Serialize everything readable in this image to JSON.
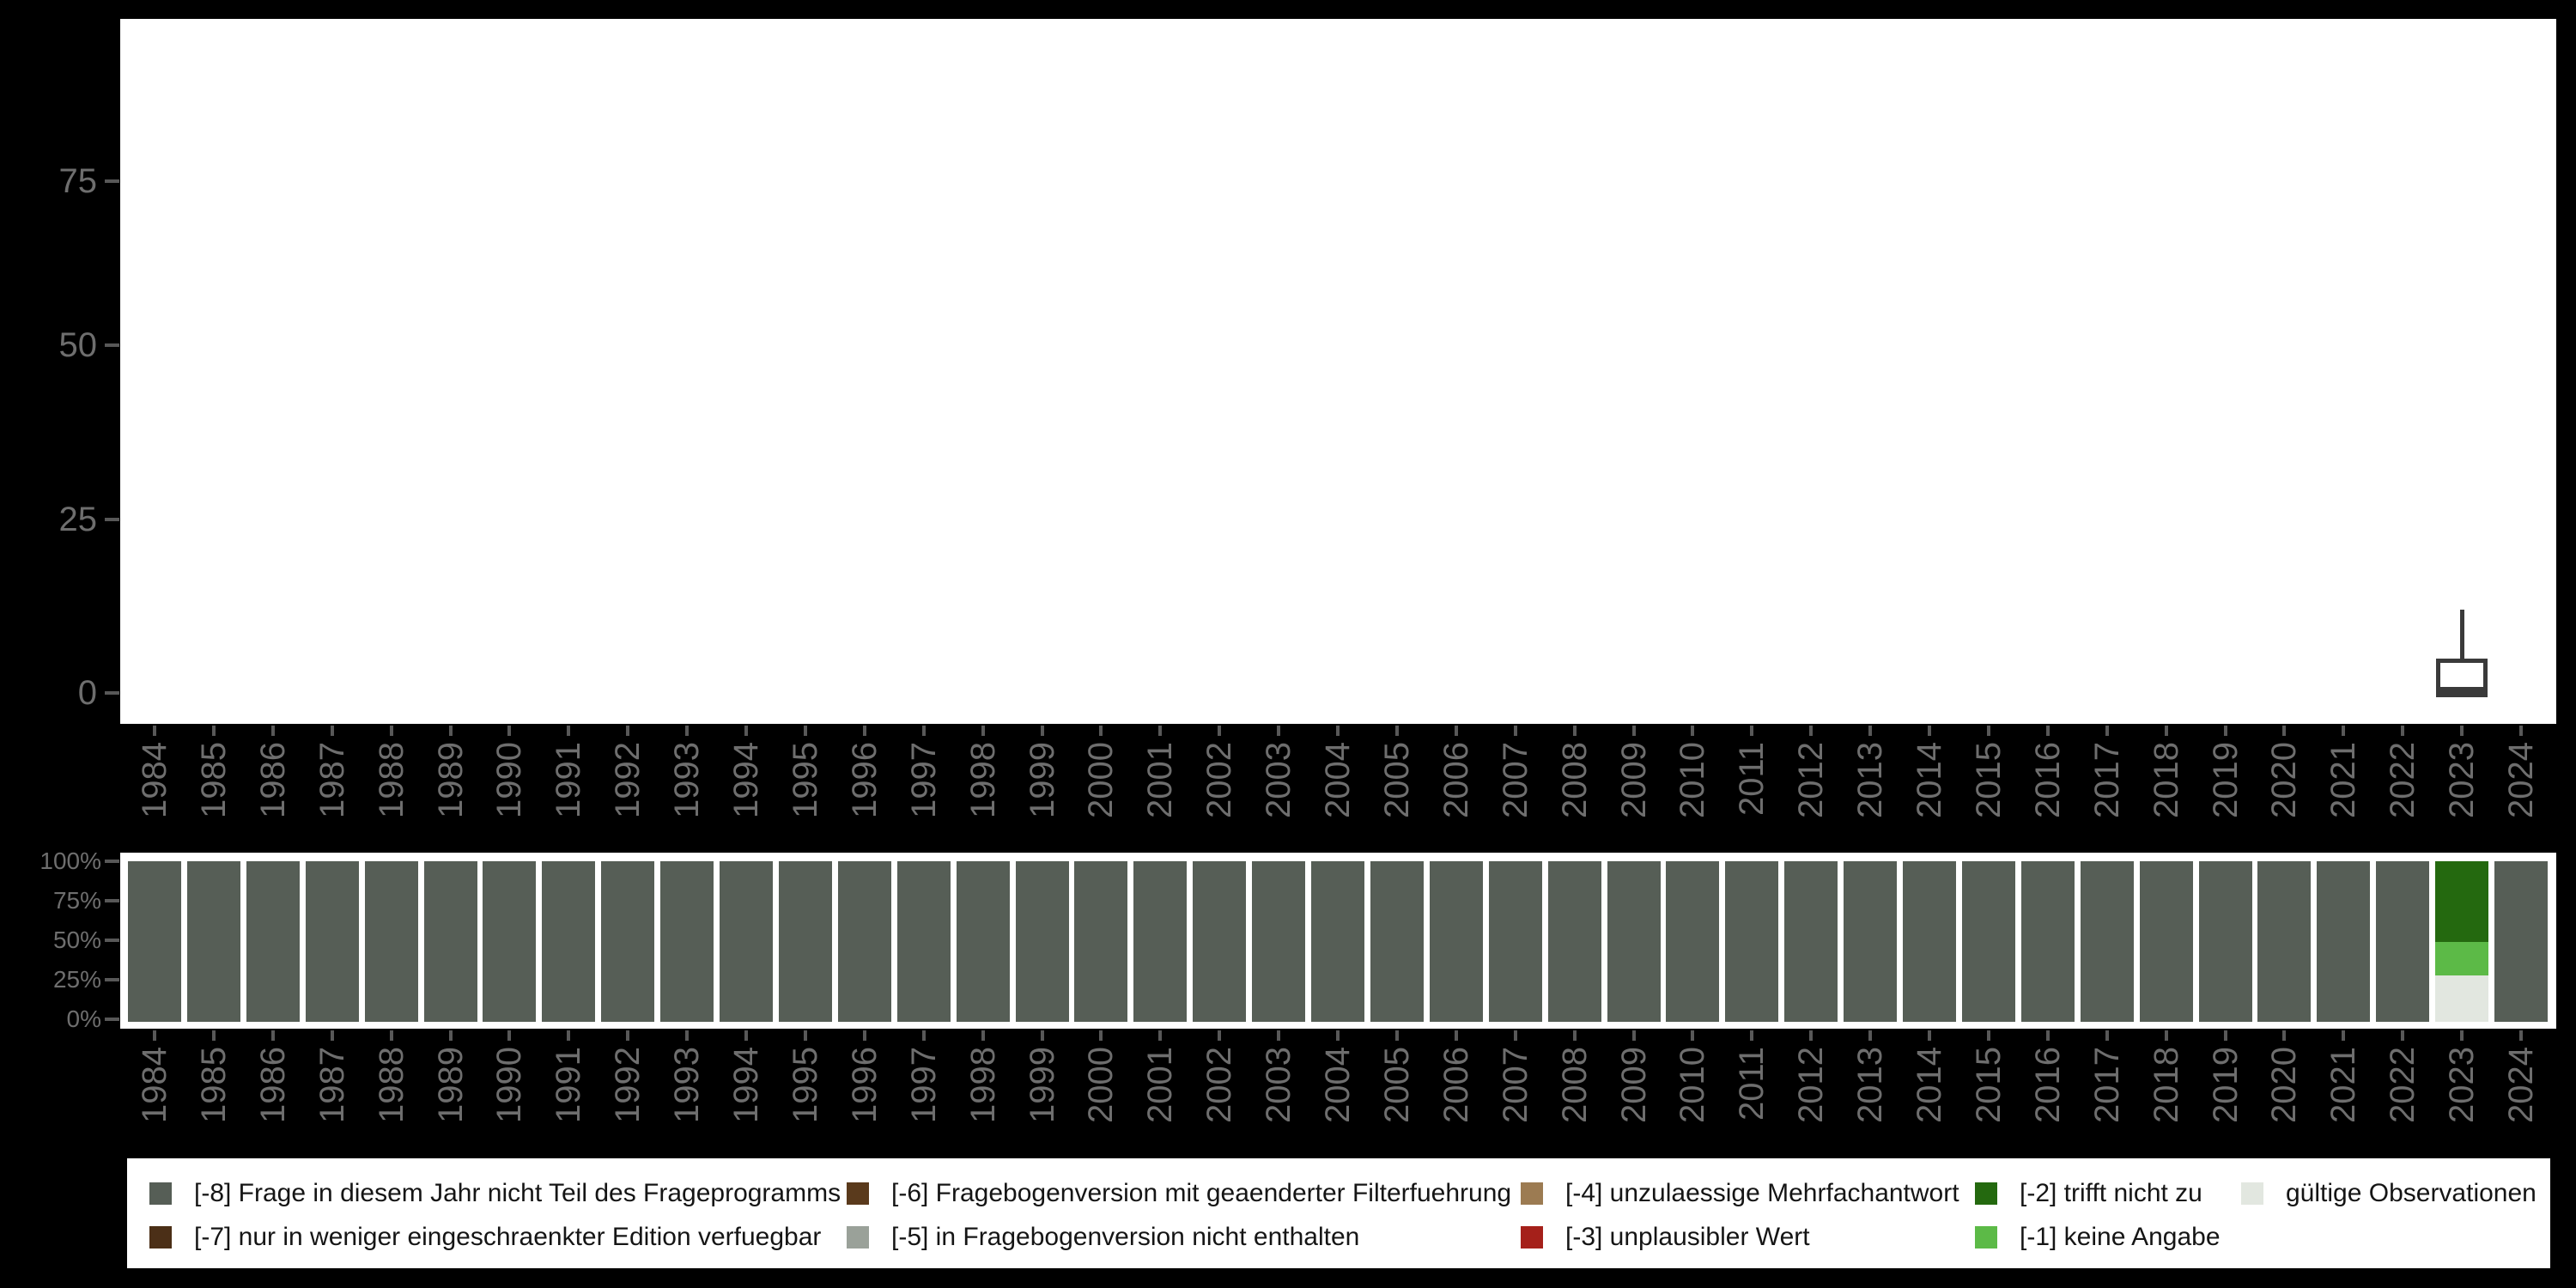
{
  "figure": {
    "background_color": "#000000",
    "plot_background_color": "#ffffff",
    "axis_text_color": "#6e6e6e",
    "tick_color": "#585858",
    "box_outline_color": "#3a3a3a"
  },
  "top_chart": {
    "y_tick_labels": [
      "75",
      "50",
      "25",
      "0"
    ]
  },
  "bottom_chart": {
    "y_tick_labels": [
      "100%",
      "75%",
      "50%",
      "25%",
      "0%"
    ]
  },
  "legend": {
    "items": [
      {
        "code": "-8",
        "label": "[-8] Frage in diesem Jahr nicht Teil des Frageprogramms",
        "color": "#565e56",
        "col": 0,
        "row": 0
      },
      {
        "code": "-7",
        "label": "[-7] nur in weniger eingeschraenkter Edition verfuegbar",
        "color": "#4b2f17",
        "col": 0,
        "row": 1
      },
      {
        "code": "-6",
        "label": "[-6] Fragebogenversion mit geaenderter Filterfuehrung",
        "color": "#5a3a1c",
        "col": 1,
        "row": 0
      },
      {
        "code": "-5",
        "label": "[-5] in Fragebogenversion nicht enthalten",
        "color": "#9aa199",
        "col": 1,
        "row": 1
      },
      {
        "code": "-4",
        "label": "[-4] unzulaessige Mehrfachantwort",
        "color": "#9c7b52",
        "col": 2,
        "row": 0
      },
      {
        "code": "-3",
        "label": "[-3] unplausibler Wert",
        "color": "#a5201a",
        "col": 2,
        "row": 1
      },
      {
        "code": "-2",
        "label": "[-2] trifft nicht zu",
        "color": "#24690f",
        "col": 3,
        "row": 0
      },
      {
        "code": "-1",
        "label": "[-1] keine Angabe",
        "color": "#5cba47",
        "col": 3,
        "row": 1
      },
      {
        "code": "valid",
        "label": "gültige Observationen",
        "color": "#e2e7e0",
        "col": 4,
        "row": 0
      }
    ]
  },
  "chart_data": [
    {
      "type": "boxplot",
      "title": "",
      "x": [
        "1984",
        "1985",
        "1986",
        "1987",
        "1988",
        "1989",
        "1990",
        "1991",
        "1992",
        "1993",
        "1994",
        "1995",
        "1996",
        "1997",
        "1998",
        "1999",
        "2000",
        "2001",
        "2002",
        "2003",
        "2004",
        "2005",
        "2006",
        "2007",
        "2008",
        "2009",
        "2010",
        "2011",
        "2012",
        "2013",
        "2014",
        "2015",
        "2016",
        "2017",
        "2018",
        "2019",
        "2020",
        "2021",
        "2022",
        "2023",
        "2024"
      ],
      "yticks": [
        0,
        25,
        50,
        75
      ],
      "ylim": [
        0,
        98
      ],
      "grid": false,
      "boxes": [
        {
          "year": "2023",
          "min": 0,
          "q1": 0,
          "median": 0.5,
          "q3": 5,
          "whisker_high": 12
        }
      ],
      "note": "only 2023 contains observations; all other years empty"
    },
    {
      "type": "bar",
      "stacked_percent": true,
      "title": "",
      "categories": [
        "1984",
        "1985",
        "1986",
        "1987",
        "1988",
        "1989",
        "1990",
        "1991",
        "1992",
        "1993",
        "1994",
        "1995",
        "1996",
        "1997",
        "1998",
        "1999",
        "2000",
        "2001",
        "2002",
        "2003",
        "2004",
        "2005",
        "2006",
        "2007",
        "2008",
        "2009",
        "2010",
        "2011",
        "2012",
        "2013",
        "2014",
        "2015",
        "2016",
        "2017",
        "2018",
        "2019",
        "2020",
        "2021",
        "2022",
        "2023",
        "2024"
      ],
      "yticks_labels": [
        "0%",
        "25%",
        "50%",
        "75%",
        "100%"
      ],
      "ylim": [
        0,
        100
      ],
      "default_composition": [
        {
          "code": "-8",
          "pct": 100
        }
      ],
      "composition_overrides": {
        "2023": [
          {
            "code": "-2",
            "pct": 50.4
          },
          {
            "code": "-1",
            "pct": 20.9
          },
          {
            "code": "valid",
            "pct": 28.7
          }
        ]
      },
      "legend_position": "bottom"
    }
  ]
}
